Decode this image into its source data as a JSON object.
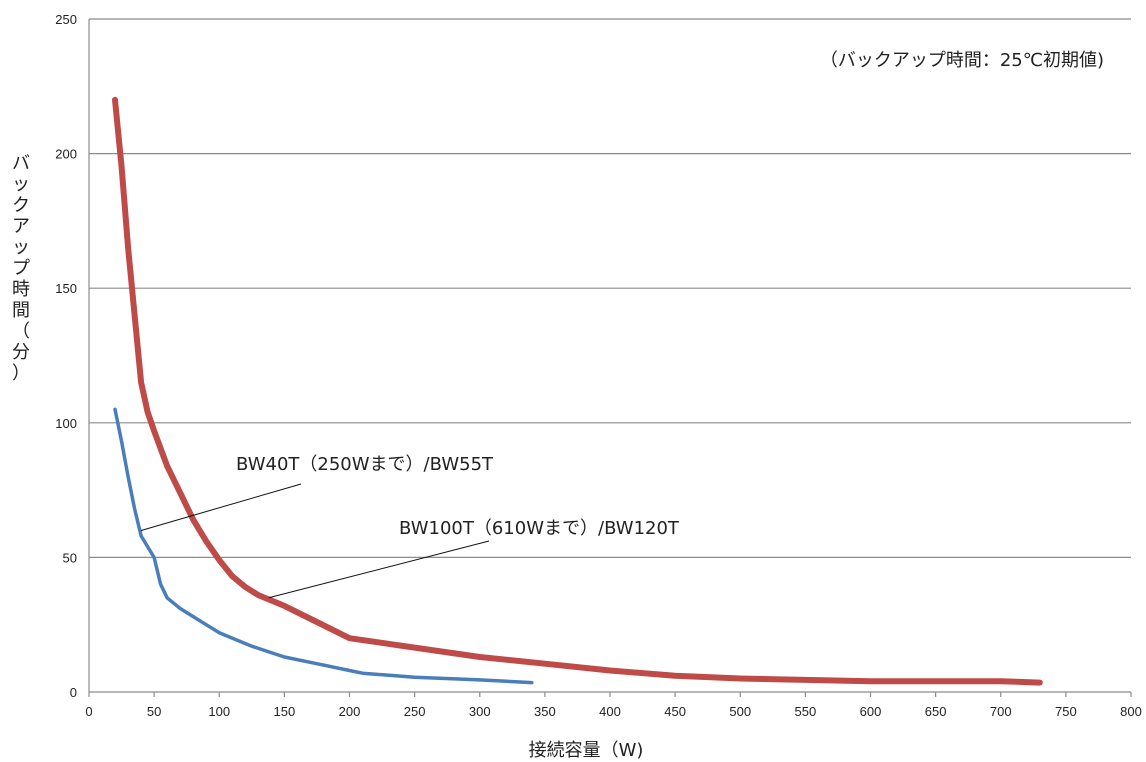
{
  "chart_data": {
    "type": "line",
    "title": "",
    "note": "（バックアップ時間：25℃初期値)",
    "xlabel": "接続容量（W)",
    "ylabel": "バックアップ時間（分）",
    "xlim": [
      0,
      800
    ],
    "ylim": [
      0,
      250
    ],
    "xticks": [
      "0",
      "50",
      "100",
      "150",
      "200",
      "250",
      "300",
      "350",
      "400",
      "450",
      "500",
      "550",
      "600",
      "650",
      "700",
      "750",
      "800"
    ],
    "yticks": [
      "0",
      "50",
      "100",
      "150",
      "200",
      "250"
    ],
    "grid": "horizontal",
    "series": [
      {
        "name": "BW40T（250Wまで）/BW55T",
        "color": "#4a7ebb",
        "x": [
          20,
          25,
          30,
          35,
          40,
          45,
          50,
          55,
          60,
          70,
          80,
          90,
          100,
          125,
          150,
          175,
          200,
          210,
          250,
          300,
          340
        ],
        "y": [
          105,
          93,
          80,
          68,
          58,
          54,
          50,
          40,
          35,
          31,
          28,
          25,
          22,
          17,
          13,
          10.5,
          8,
          7,
          5.5,
          4.5,
          3.5
        ]
      },
      {
        "name": "BW100T（610Wまで）/BW120T",
        "color": "#be4b48",
        "x": [
          20,
          25,
          30,
          35,
          40,
          45,
          50,
          60,
          70,
          80,
          90,
          100,
          110,
          120,
          130,
          140,
          150,
          175,
          200,
          250,
          300,
          350,
          400,
          450,
          500,
          550,
          600,
          650,
          700,
          730
        ],
        "y": [
          220,
          195,
          165,
          140,
          115,
          104,
          97,
          84,
          74,
          64,
          56,
          49,
          43,
          39,
          36,
          34,
          32,
          26,
          20,
          16.5,
          13,
          10.5,
          8,
          6,
          5,
          4.5,
          4,
          4,
          4,
          3.5
        ]
      }
    ],
    "labels": [
      {
        "text": "BW40T（250Wまで）/BW55T",
        "series": 0
      },
      {
        "text": "BW100T（610Wまで）/BW120T",
        "series": 1
      }
    ]
  }
}
